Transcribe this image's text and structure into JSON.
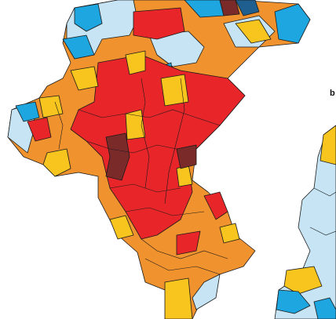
{
  "panel_label": "b"
}
